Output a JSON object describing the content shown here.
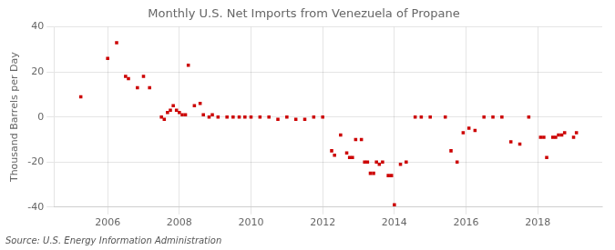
{
  "chart_data": {
    "type": "scatter",
    "title": "Monthly U.S. Net Imports from Venezuela of Propane",
    "ylabel": "Thousand Barrels per Day",
    "source": "Source: U.S. Energy Information Administration",
    "color": "#cc0000",
    "marker": "square",
    "grid": true,
    "xlim": [
      2004.5,
      2019.8
    ],
    "xticks": [
      2006,
      2008,
      2010,
      2012,
      2014,
      2016,
      2018
    ],
    "ylim": [
      -40,
      40
    ],
    "yticks": [
      -40,
      -20,
      0,
      20,
      40
    ],
    "x": [
      2005.25,
      2006.0,
      2006.25,
      2006.5,
      2006.58,
      2006.83,
      2007.0,
      2007.17,
      2007.5,
      2007.58,
      2007.67,
      2007.75,
      2007.83,
      2007.92,
      2008.0,
      2008.08,
      2008.17,
      2008.25,
      2008.42,
      2008.58,
      2008.67,
      2008.83,
      2008.92,
      2009.08,
      2009.33,
      2009.5,
      2009.67,
      2009.83,
      2010.0,
      2010.25,
      2010.5,
      2010.75,
      2011.0,
      2011.25,
      2011.5,
      2011.75,
      2012.0,
      2012.25,
      2012.33,
      2012.5,
      2012.67,
      2012.75,
      2012.83,
      2012.92,
      2013.08,
      2013.17,
      2013.25,
      2013.33,
      2013.42,
      2013.5,
      2013.58,
      2013.67,
      2013.83,
      2013.92,
      2014.0,
      2014.17,
      2014.33,
      2014.58,
      2014.75,
      2015.0,
      2015.42,
      2015.58,
      2015.75,
      2015.92,
      2016.08,
      2016.25,
      2016.5,
      2016.75,
      2017.0,
      2017.25,
      2017.5,
      2017.75,
      2018.08,
      2018.17,
      2018.25,
      2018.42,
      2018.5,
      2018.58,
      2018.67,
      2018.75,
      2019.0,
      2019.08
    ],
    "values": [
      9,
      26,
      33,
      18,
      17,
      13,
      18,
      13,
      0,
      -1,
      2,
      3,
      5,
      3,
      2,
      1,
      1,
      23,
      5,
      6,
      1,
      0,
      1,
      0,
      0,
      0,
      0,
      0,
      0,
      0,
      0,
      -1,
      0,
      -1,
      -1,
      0,
      0,
      -15,
      -17,
      -8,
      -16,
      -18,
      -18,
      -10,
      -10,
      -20,
      -20,
      -25,
      -25,
      -20,
      -21,
      -20,
      -26,
      -26,
      -39,
      -21,
      -20,
      0,
      0,
      0,
      0,
      -15,
      -20,
      -7,
      -5,
      -6,
      0,
      0,
      0,
      -11,
      -12,
      0,
      -9,
      -9,
      -18,
      -9,
      -9,
      -8,
      -8,
      -7,
      -9,
      -7
    ]
  }
}
